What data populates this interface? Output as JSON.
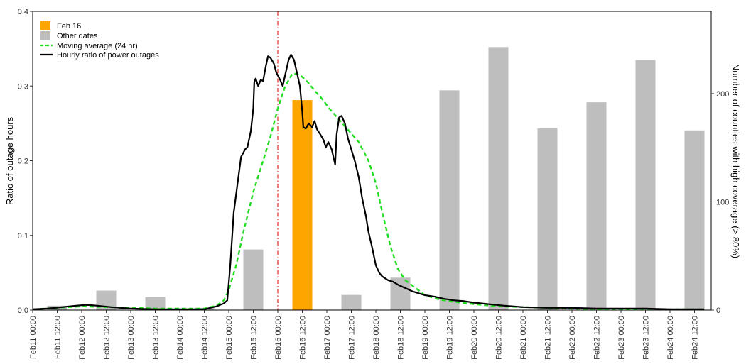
{
  "chart_data": {
    "type": "bar",
    "ylabel_left": "Ratio of outage hours",
    "ylabel_right": "Number of counties with high coverage (> 80%)",
    "ylim_left": [
      0,
      0.4
    ],
    "ylim_right": [
      0,
      276
    ],
    "yticks_left": [
      "0.0",
      "0.1",
      "0.2",
      "0.3",
      "0.4"
    ],
    "yticks_right": [
      "0",
      "100",
      "200"
    ],
    "x_tick_labels": [
      "Feb11 00:00",
      "Feb11 12:00",
      "Feb12 00:00",
      "Feb12 12:00",
      "Feb13 00:00",
      "Feb13 12:00",
      "Feb14 00:00",
      "Feb14 12:00",
      "Feb15 00:00",
      "Feb15 12:00",
      "Feb16 00:00",
      "Feb16 12:00",
      "Feb17 00:00",
      "Feb17 12:00",
      "Feb18 00:00",
      "Feb18 12:00",
      "Feb19 00:00",
      "Feb19 12:00",
      "Feb20 00:00",
      "Feb20 12:00",
      "Feb21 00:00",
      "Feb21 12:00",
      "Feb22 00:00",
      "Feb22 12:00",
      "Feb23 00:00",
      "Feb23 12:00",
      "Feb24 00:00",
      "Feb24 12:00"
    ],
    "grid": false,
    "legend_position": "top-left",
    "reference_line_day": 5,
    "colors": {
      "highlight": "#FFA500",
      "other": "#BEBEBE",
      "moving_avg": "#22DD22",
      "hourly": "#000000",
      "refline": "#DD0000"
    },
    "bars": {
      "name_highlight": "Feb 16",
      "name_other": "Other dates",
      "days": [
        "Feb11",
        "Feb12",
        "Feb13",
        "Feb14",
        "Feb15",
        "Feb16",
        "Feb17",
        "Feb18",
        "Feb19",
        "Feb20",
        "Feb21",
        "Feb22",
        "Feb23",
        "Feb24"
      ],
      "values": [
        4,
        18,
        12,
        2,
        56,
        194,
        14,
        30,
        203,
        243,
        168,
        192,
        231,
        166
      ],
      "highlight_index": 5
    },
    "lines": [
      {
        "name": "Moving average (24 hr)",
        "style": "dashed",
        "points": [
          [
            0,
            0.001
          ],
          [
            0.5,
            0.003
          ],
          [
            1,
            0.005
          ],
          [
            1.5,
            0.004
          ],
          [
            2,
            0.003
          ],
          [
            2.5,
            0.002
          ],
          [
            3,
            0.002
          ],
          [
            3.5,
            0.002
          ],
          [
            3.75,
            0.006
          ],
          [
            3.9,
            0.013
          ],
          [
            4.0,
            0.027
          ],
          [
            4.15,
            0.06
          ],
          [
            4.3,
            0.105
          ],
          [
            4.5,
            0.158
          ],
          [
            4.7,
            0.2
          ],
          [
            4.85,
            0.232
          ],
          [
            5.0,
            0.27
          ],
          [
            5.15,
            0.3
          ],
          [
            5.3,
            0.317
          ],
          [
            5.45,
            0.315
          ],
          [
            5.6,
            0.306
          ],
          [
            5.75,
            0.294
          ],
          [
            5.9,
            0.283
          ],
          [
            6.05,
            0.27
          ],
          [
            6.25,
            0.255
          ],
          [
            6.45,
            0.24
          ],
          [
            6.65,
            0.225
          ],
          [
            6.85,
            0.2
          ],
          [
            7.0,
            0.17
          ],
          [
            7.15,
            0.125
          ],
          [
            7.3,
            0.085
          ],
          [
            7.45,
            0.055
          ],
          [
            7.6,
            0.04
          ],
          [
            7.8,
            0.03
          ],
          [
            8.0,
            0.02
          ],
          [
            8.3,
            0.014
          ],
          [
            8.6,
            0.011
          ],
          [
            9,
            0.008
          ],
          [
            9.5,
            0.005
          ],
          [
            10,
            0.004
          ],
          [
            11,
            0.002
          ],
          [
            12,
            0.001
          ],
          [
            13,
            0.001
          ],
          [
            13.7,
            0.001
          ]
        ]
      },
      {
        "name": "Hourly ratio of power outages",
        "style": "solid",
        "points": [
          [
            0,
            0.001
          ],
          [
            0.3,
            0.002
          ],
          [
            0.6,
            0.004
          ],
          [
            0.9,
            0.006
          ],
          [
            1.1,
            0.007
          ],
          [
            1.3,
            0.006
          ],
          [
            1.6,
            0.004
          ],
          [
            2,
            0.002
          ],
          [
            2.5,
            0.001
          ],
          [
            3,
            0.001
          ],
          [
            3.5,
            0.001
          ],
          [
            3.75,
            0.005
          ],
          [
            3.9,
            0.009
          ],
          [
            3.97,
            0.013
          ],
          [
            4.03,
            0.06
          ],
          [
            4.1,
            0.13
          ],
          [
            4.18,
            0.17
          ],
          [
            4.25,
            0.205
          ],
          [
            4.33,
            0.215
          ],
          [
            4.38,
            0.218
          ],
          [
            4.45,
            0.24
          ],
          [
            4.5,
            0.27
          ],
          [
            4.52,
            0.305
          ],
          [
            4.55,
            0.31
          ],
          [
            4.6,
            0.3
          ],
          [
            4.65,
            0.308
          ],
          [
            4.7,
            0.307
          ],
          [
            4.75,
            0.325
          ],
          [
            4.8,
            0.34
          ],
          [
            4.85,
            0.338
          ],
          [
            4.92,
            0.33
          ],
          [
            4.97,
            0.318
          ],
          [
            5.05,
            0.308
          ],
          [
            5.1,
            0.3
          ],
          [
            5.15,
            0.315
          ],
          [
            5.22,
            0.335
          ],
          [
            5.27,
            0.342
          ],
          [
            5.33,
            0.335
          ],
          [
            5.4,
            0.315
          ],
          [
            5.45,
            0.3
          ],
          [
            5.5,
            0.265
          ],
          [
            5.52,
            0.245
          ],
          [
            5.57,
            0.243
          ],
          [
            5.63,
            0.25
          ],
          [
            5.7,
            0.245
          ],
          [
            5.75,
            0.253
          ],
          [
            5.8,
            0.242
          ],
          [
            5.87,
            0.235
          ],
          [
            5.93,
            0.228
          ],
          [
            5.98,
            0.218
          ],
          [
            6.03,
            0.225
          ],
          [
            6.1,
            0.215
          ],
          [
            6.17,
            0.195
          ],
          [
            6.2,
            0.235
          ],
          [
            6.25,
            0.258
          ],
          [
            6.3,
            0.26
          ],
          [
            6.37,
            0.25
          ],
          [
            6.43,
            0.23
          ],
          [
            6.5,
            0.215
          ],
          [
            6.57,
            0.2
          ],
          [
            6.65,
            0.178
          ],
          [
            6.72,
            0.15
          ],
          [
            6.8,
            0.125
          ],
          [
            6.85,
            0.105
          ],
          [
            6.92,
            0.085
          ],
          [
            7.0,
            0.06
          ],
          [
            7.07,
            0.05
          ],
          [
            7.13,
            0.045
          ],
          [
            7.25,
            0.04
          ],
          [
            7.35,
            0.038
          ],
          [
            7.45,
            0.034
          ],
          [
            7.55,
            0.031
          ],
          [
            7.65,
            0.028
          ],
          [
            7.75,
            0.025
          ],
          [
            7.85,
            0.023
          ],
          [
            8.0,
            0.02
          ],
          [
            8.2,
            0.018
          ],
          [
            8.4,
            0.015
          ],
          [
            8.6,
            0.013
          ],
          [
            8.8,
            0.012
          ],
          [
            9.0,
            0.01
          ],
          [
            9.3,
            0.008
          ],
          [
            9.6,
            0.006
          ],
          [
            10,
            0.004
          ],
          [
            10.5,
            0.003
          ],
          [
            11,
            0.003
          ],
          [
            11.5,
            0.002
          ],
          [
            12,
            0.002
          ],
          [
            12.5,
            0.002
          ],
          [
            13,
            0.001
          ],
          [
            13.5,
            0.001
          ],
          [
            13.7,
            0.001
          ]
        ]
      }
    ]
  }
}
